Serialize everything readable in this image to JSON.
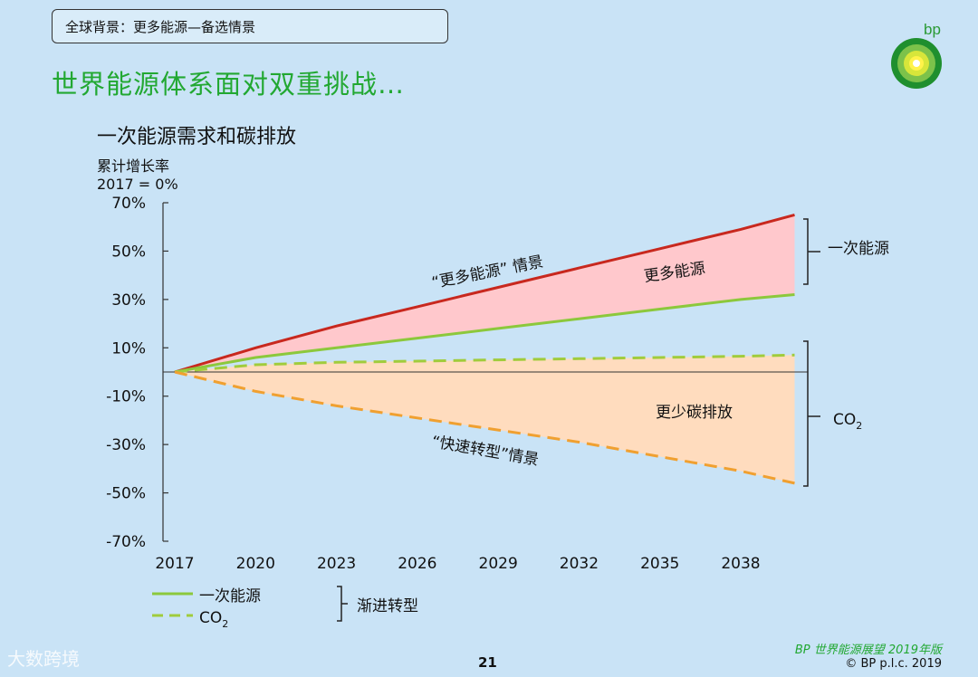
{
  "header": {
    "breadcrumb": "全球背景：更多能源—备选情景"
  },
  "page_title": "世界能源体系面对双重挑战…",
  "brand": {
    "logo_text": "bp",
    "footer_brand": "BP 世界能源展望 2019年版",
    "copyright": "© BP p.l.c. 2019"
  },
  "page_number": "21",
  "watermark": "大数跨境",
  "colors": {
    "primary_more_energy_line": "#c8281e",
    "primary_et_line": "#8cc83c",
    "co2_et_line": "#a0cc3c",
    "co2_rapid_line": "#f0a030",
    "primary_fill": "#ffc8cc",
    "co2_fill": "#ffdcbe",
    "title_green": "#22a832"
  },
  "chart_data": {
    "type": "line",
    "title": "一次能源需求和碳排放",
    "ylabel": "累计增长率",
    "ylabel_note": "2017 = 0%",
    "x": [
      2017,
      2020,
      2023,
      2026,
      2029,
      2032,
      2035,
      2038,
      2040
    ],
    "xticks": [
      "2017",
      "2020",
      "2023",
      "2026",
      "2029",
      "2032",
      "2035",
      "2038"
    ],
    "yticks": [
      "70%",
      "50%",
      "30%",
      "10%",
      "-10%",
      "-30%",
      "-50%",
      "-70%"
    ],
    "ylim": [
      -70,
      70
    ],
    "series": [
      {
        "id": "primary_more",
        "values": [
          0,
          10,
          19,
          27,
          35,
          43,
          51,
          59,
          65
        ]
      },
      {
        "id": "primary_et",
        "name": "一次能源",
        "values": [
          0,
          6,
          10,
          14,
          18,
          22,
          26,
          30,
          32
        ]
      },
      {
        "id": "co2_et",
        "name": "CO2",
        "values": [
          0,
          3,
          4,
          4.5,
          5,
          5.5,
          6,
          6.5,
          7
        ]
      },
      {
        "id": "co2_rapid",
        "values": [
          0,
          -8,
          -14,
          -19,
          -24,
          -29,
          -35,
          -41,
          -46
        ]
      }
    ],
    "annotations": {
      "more_energy_scenario": "“更多能源” 情景",
      "more_energy_area": "更多能源",
      "rapid_transition_scenario": "“快速转型”情景",
      "less_carbon_area": "更少碳排放",
      "bracket_primary": "一次能源",
      "bracket_co2": "CO2"
    },
    "legend": {
      "items": [
        "一次能源",
        "CO2"
      ],
      "group_label": "渐进转型",
      "placement": "bottom-left"
    }
  }
}
